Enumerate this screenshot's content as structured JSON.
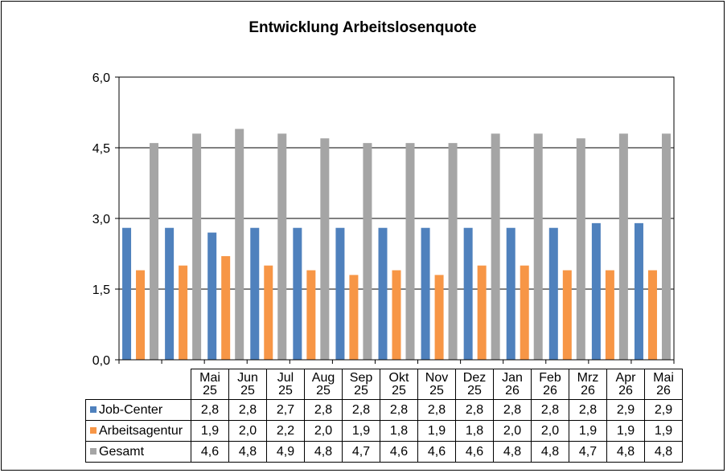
{
  "chart_data": {
    "type": "bar",
    "title": "Entwicklung  Arbeitslosenquote",
    "categories": [
      [
        "Mai",
        "25"
      ],
      [
        "Jun",
        "25"
      ],
      [
        "Jul",
        "25"
      ],
      [
        "Aug",
        "25"
      ],
      [
        "Sep",
        "25"
      ],
      [
        "Okt",
        "25"
      ],
      [
        "Nov",
        "25"
      ],
      [
        "Dez",
        "25"
      ],
      [
        "Jan",
        "26"
      ],
      [
        "Feb",
        "26"
      ],
      [
        "Mrz",
        "26"
      ],
      [
        "Apr",
        "26"
      ],
      [
        "Mai",
        "26"
      ]
    ],
    "ylim": [
      0,
      6
    ],
    "yticks": [
      "0,0",
      "1,5",
      "3,0",
      "4,5",
      "6,0"
    ],
    "ytick_values": [
      0,
      1.5,
      3,
      4.5,
      6
    ],
    "grid": true,
    "legend": "data-table",
    "series": [
      {
        "name": "Job-Center",
        "color": "#4f81bd",
        "values": [
          2.8,
          2.8,
          2.7,
          2.8,
          2.8,
          2.8,
          2.8,
          2.8,
          2.8,
          2.8,
          2.8,
          2.9,
          2.9
        ],
        "labels": [
          "2,8",
          "2,8",
          "2,7",
          "2,8",
          "2,8",
          "2,8",
          "2,8",
          "2,8",
          "2,8",
          "2,8",
          "2,8",
          "2,9",
          "2,9"
        ]
      },
      {
        "name": "Arbeitsagentur",
        "color": "#f79646",
        "values": [
          1.9,
          2.0,
          2.2,
          2.0,
          1.9,
          1.8,
          1.9,
          1.8,
          2.0,
          2.0,
          1.9,
          1.9,
          1.9
        ],
        "labels": [
          "1,9",
          "2,0",
          "2,2",
          "2,0",
          "1,9",
          "1,8",
          "1,9",
          "1,8",
          "2,0",
          "2,0",
          "1,9",
          "1,9",
          "1,9"
        ]
      },
      {
        "name": "Gesamt",
        "color": "#a5a5a5",
        "values": [
          4.6,
          4.8,
          4.9,
          4.8,
          4.7,
          4.6,
          4.6,
          4.6,
          4.8,
          4.8,
          4.7,
          4.8,
          4.8
        ],
        "labels": [
          "4,6",
          "4,8",
          "4,9",
          "4,8",
          "4,7",
          "4,6",
          "4,6",
          "4,6",
          "4,8",
          "4,8",
          "4,7",
          "4,8",
          "4,8"
        ]
      }
    ]
  }
}
